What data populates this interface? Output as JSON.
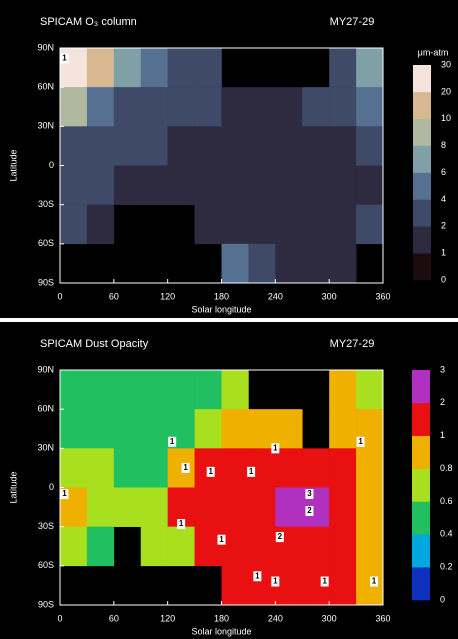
{
  "chart_data": [
    {
      "type": "heatmap",
      "title": "SPICAM O₃ column",
      "subtitle": "MY27-29",
      "x_label": "Solar longitude",
      "y_label": "Latitude",
      "colorbar_label": "μm-atm",
      "xlim": [
        0,
        360
      ],
      "xticks": [
        0,
        60,
        120,
        180,
        240,
        300,
        360
      ],
      "ylim": [
        -90,
        90
      ],
      "yticks": [
        {
          "value": 90,
          "label": "90N"
        },
        {
          "value": 60,
          "label": "60N"
        },
        {
          "value": 30,
          "label": "30N"
        },
        0,
        {
          "value": -30,
          "label": "30S"
        },
        {
          "value": -60,
          "label": "60S"
        },
        {
          "value": -90,
          "label": "90S"
        }
      ],
      "x_edges": [
        0,
        30,
        60,
        90,
        120,
        150,
        180,
        210,
        240,
        270,
        300,
        330,
        360
      ],
      "y_edges": [
        90,
        60,
        30,
        0,
        -30,
        -60,
        -90
      ],
      "z": [
        [
          20,
          10,
          6,
          4,
          3,
          3,
          null,
          null,
          null,
          null,
          2,
          6
        ],
        [
          8,
          5,
          3,
          2,
          2,
          2,
          1,
          1,
          1,
          2,
          2,
          4
        ],
        [
          3,
          2,
          2,
          2,
          1,
          1,
          1,
          1,
          1,
          1,
          1,
          2
        ],
        [
          2,
          2,
          1,
          1,
          1,
          1,
          1,
          1,
          1,
          1,
          1,
          1
        ],
        [
          3,
          1,
          null,
          null,
          null,
          1,
          1,
          1,
          1,
          1,
          1,
          2
        ],
        [
          null,
          null,
          null,
          null,
          null,
          null,
          4,
          2,
          1,
          1,
          1,
          null
        ]
      ],
      "levels": [
        0,
        1,
        2,
        4,
        6,
        8,
        10,
        20,
        30
      ],
      "colors": [
        "#1c0c10",
        "#2e2a40",
        "#3e4a68",
        "#557090",
        "#80a0a8",
        "#b0b8a0",
        "#d8b890",
        "#f4e4dc"
      ],
      "contour_labels": [
        {
          "x": 5,
          "y": 82,
          "value": 1
        }
      ]
    },
    {
      "type": "heatmap",
      "title": "SPICAM Dust Opacity",
      "subtitle": "MY27-29",
      "x_label": "Solar longitude",
      "y_label": "Latitude",
      "xlim": [
        0,
        360
      ],
      "xticks": [
        0,
        60,
        120,
        180,
        240,
        300,
        360
      ],
      "ylim": [
        -90,
        90
      ],
      "yticks": [
        {
          "value": 90,
          "label": "90N"
        },
        {
          "value": 60,
          "label": "60N"
        },
        {
          "value": 30,
          "label": "30N"
        },
        0,
        {
          "value": -30,
          "label": "30S"
        },
        {
          "value": -60,
          "label": "60S"
        },
        {
          "value": -90,
          "label": "90S"
        }
      ],
      "x_edges": [
        0,
        30,
        60,
        90,
        120,
        150,
        180,
        210,
        240,
        270,
        300,
        330,
        360
      ],
      "y_edges": [
        90,
        60,
        30,
        0,
        -30,
        -60,
        -90
      ],
      "z": [
        [
          0.5,
          0.5,
          0.5,
          0.5,
          0.5,
          0.5,
          0.6,
          null,
          null,
          null,
          0.8,
          0.6
        ],
        [
          0.5,
          0.4,
          0.5,
          0.5,
          0.5,
          0.6,
          0.8,
          0.8,
          0.8,
          null,
          0.9,
          0.8
        ],
        [
          0.7,
          0.6,
          0.5,
          0.5,
          0.8,
          1,
          1.2,
          1.5,
          1.2,
          1.2,
          1.2,
          0.9
        ],
        [
          0.9,
          0.6,
          0.6,
          0.6,
          1,
          1.5,
          1.5,
          1.6,
          2,
          2,
          1.5,
          0.8
        ],
        [
          0.6,
          0.5,
          null,
          0.6,
          0.7,
          1.5,
          1.5,
          1.5,
          1.8,
          1.8,
          1.3,
          0.8
        ],
        [
          null,
          null,
          null,
          null,
          null,
          null,
          1,
          1.2,
          1.2,
          1.2,
          1,
          0.9
        ]
      ],
      "levels": [
        0,
        0.2,
        0.4,
        0.6,
        0.8,
        1,
        2,
        3
      ],
      "colors": [
        "#1030c0",
        "#00a8e0",
        "#20c060",
        "#a8e020",
        "#f0b000",
        "#e81010",
        "#b030c0"
      ],
      "contour_labels": [
        {
          "x": 125,
          "y": 35,
          "value": 1
        },
        {
          "x": 140,
          "y": 15,
          "value": 1
        },
        {
          "x": 168,
          "y": 12,
          "value": 1
        },
        {
          "x": 213,
          "y": 12,
          "value": 1
        },
        {
          "x": 240,
          "y": 30,
          "value": 1
        },
        {
          "x": 335,
          "y": 35,
          "value": 1
        },
        {
          "x": 278,
          "y": -5,
          "value": 3
        },
        {
          "x": 278,
          "y": -18,
          "value": 2
        },
        {
          "x": 245,
          "y": -38,
          "value": 2
        },
        {
          "x": 180,
          "y": -40,
          "value": 1
        },
        {
          "x": 135,
          "y": -28,
          "value": 1
        },
        {
          "x": 5,
          "y": -5,
          "value": 1
        },
        {
          "x": 220,
          "y": -68,
          "value": 1
        },
        {
          "x": 240,
          "y": -72,
          "value": 1
        },
        {
          "x": 295,
          "y": -72,
          "value": 1
        },
        {
          "x": 350,
          "y": -72,
          "value": 1
        }
      ]
    }
  ]
}
